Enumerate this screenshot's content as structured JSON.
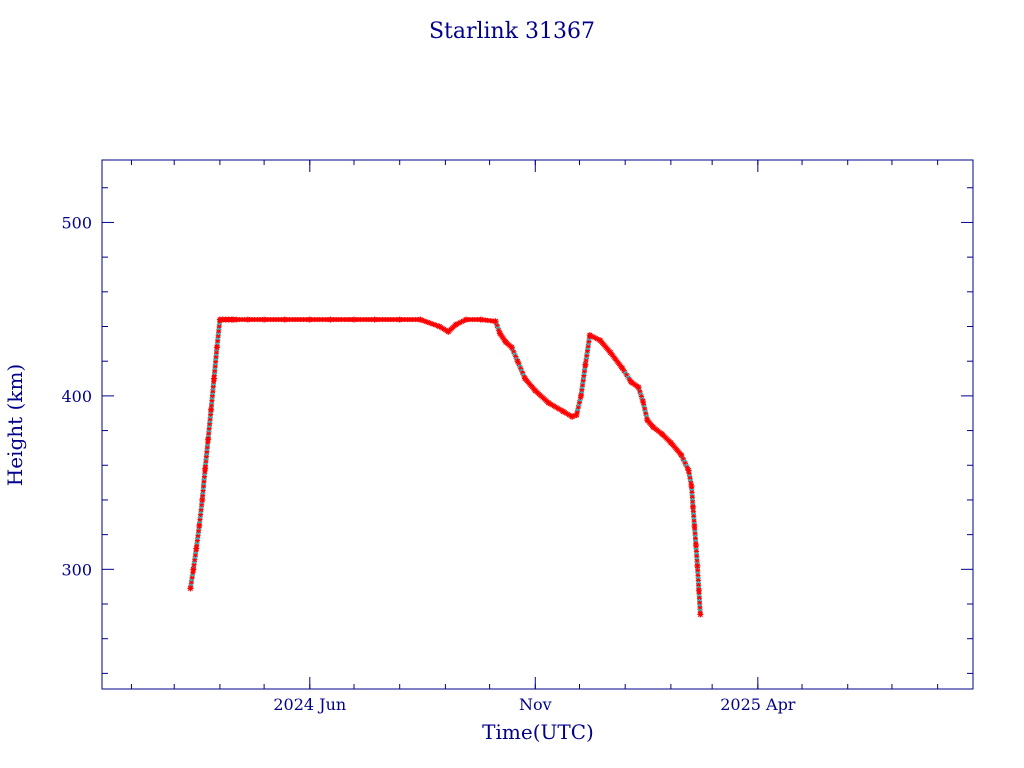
{
  "colors": {
    "axis": "#00008b",
    "text": "#00008b",
    "line": "#000000",
    "marker_primary": "#ff0000",
    "marker_secondary": "#00e5ee"
  },
  "chart_data": {
    "type": "scatter",
    "title": "Starlink 31367",
    "xlabel": "Time(UTC)",
    "ylabel": "Height (km)",
    "xlim": [
      "2024-01-12",
      "2025-08-25"
    ],
    "ylim": [
      231,
      536
    ],
    "x_ticks": [
      {
        "date": "2024-06-01",
        "label": "2024 Jun"
      },
      {
        "date": "2024-11-01",
        "label": "Nov"
      },
      {
        "date": "2025-04-01",
        "label": "2025 Apr"
      }
    ],
    "y_ticks": [
      {
        "value": 300,
        "label": "300"
      },
      {
        "value": 400,
        "label": "400"
      },
      {
        "value": 500,
        "label": "500"
      }
    ],
    "grid": false,
    "legend": "none",
    "series": [
      {
        "marker": "asterisk",
        "x": [
          "2024-03-12",
          "2024-03-14",
          "2024-03-16",
          "2024-03-18",
          "2024-03-20",
          "2024-03-22",
          "2024-03-24",
          "2024-03-26",
          "2024-03-28",
          "2024-03-30",
          "2024-04-01",
          "2024-04-03",
          "2024-04-05",
          "2024-04-07",
          "2024-04-09",
          "2024-04-10",
          "2024-04-12",
          "2024-04-20",
          "2024-05-01",
          "2024-05-15",
          "2024-06-01",
          "2024-06-15",
          "2024-07-01",
          "2024-07-15",
          "2024-08-01",
          "2024-08-15",
          "2024-08-28",
          "2024-09-03",
          "2024-09-08",
          "2024-09-15",
          "2024-09-25",
          "2024-10-05",
          "2024-10-08",
          "2024-10-12",
          "2024-10-16",
          "2024-10-20",
          "2024-10-25",
          "2024-11-01",
          "2024-11-10",
          "2024-11-20",
          "2024-11-26",
          "2024-11-29",
          "2024-12-02",
          "2024-12-05",
          "2024-12-08",
          "2024-12-15",
          "2024-12-22",
          "2024-12-30",
          "2025-01-05",
          "2025-01-10",
          "2025-01-13",
          "2025-01-16",
          "2025-01-20",
          "2025-01-26",
          "2025-02-01",
          "2025-02-08",
          "2025-02-13",
          "2025-02-15",
          "2025-02-16",
          "2025-02-17",
          "2025-02-18",
          "2025-02-19",
          "2025-02-20",
          "2025-02-21"
        ],
        "y": [
          289,
          300,
          312,
          325,
          340,
          358,
          375,
          392,
          410,
          428,
          444,
          444,
          444,
          444,
          444,
          444,
          444,
          444,
          444,
          444,
          444,
          444,
          444,
          444,
          444,
          444,
          440,
          437,
          441,
          444,
          444,
          443,
          436,
          431,
          428,
          420,
          410,
          403,
          396,
          391,
          388,
          389,
          400,
          418,
          435,
          432,
          425,
          416,
          408,
          405,
          397,
          386,
          382,
          378,
          373,
          366,
          357,
          348,
          336,
          325,
          314,
          302,
          288,
          274
        ]
      }
    ]
  }
}
